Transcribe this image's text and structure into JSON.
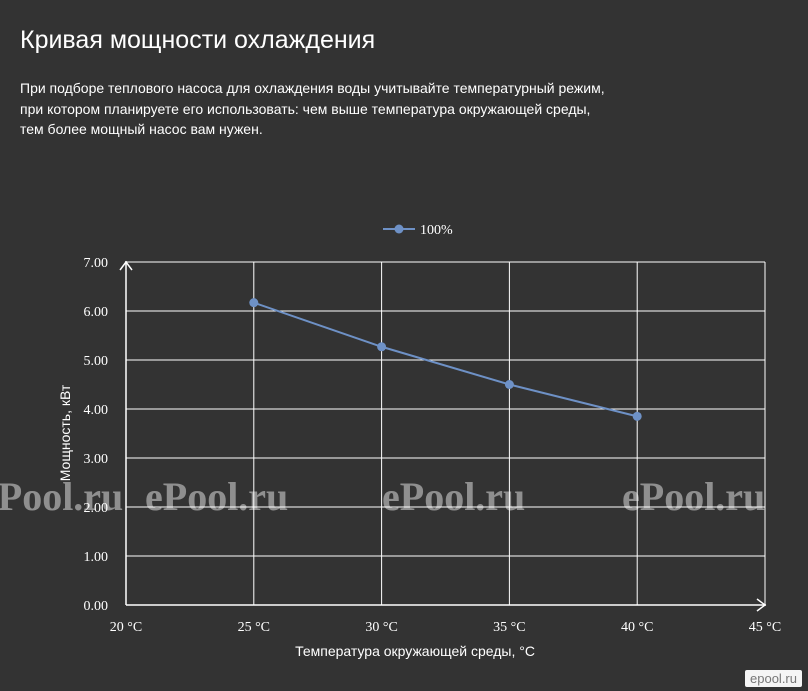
{
  "page": {
    "title": "Кривая мощности охлаждения",
    "description": [
      "При подборе теплового насоса для охлаждения воды учитывайте температурный режим,",
      "при котором планируете его использовать: чем выше температура окружающей среды,",
      "тем более мощный насос вам нужен."
    ],
    "watermark": "ePool.ru",
    "brand": "epool.ru"
  },
  "chart_data": {
    "type": "line",
    "title": "",
    "xlabel": "Температура окружающей среды, °C",
    "ylabel": "Мощность, кВт",
    "categories": [
      "20 °C",
      "25 °C",
      "30 °C",
      "35 °C",
      "40 °C",
      "45 °C"
    ],
    "x": [
      20,
      25,
      30,
      35,
      40,
      45
    ],
    "xlim": [
      20,
      45
    ],
    "ylim": [
      0,
      7
    ],
    "y_ticks": [
      "0.00",
      "1.00",
      "2.00",
      "3.00",
      "4.00",
      "5.00",
      "6.00",
      "7.00"
    ],
    "grid": true,
    "legend": "top-center",
    "series": [
      {
        "name": "100%",
        "color": "#6e91c6",
        "x": [
          25,
          30,
          35,
          40
        ],
        "values": [
          6.17,
          5.27,
          4.5,
          3.85
        ]
      }
    ]
  }
}
